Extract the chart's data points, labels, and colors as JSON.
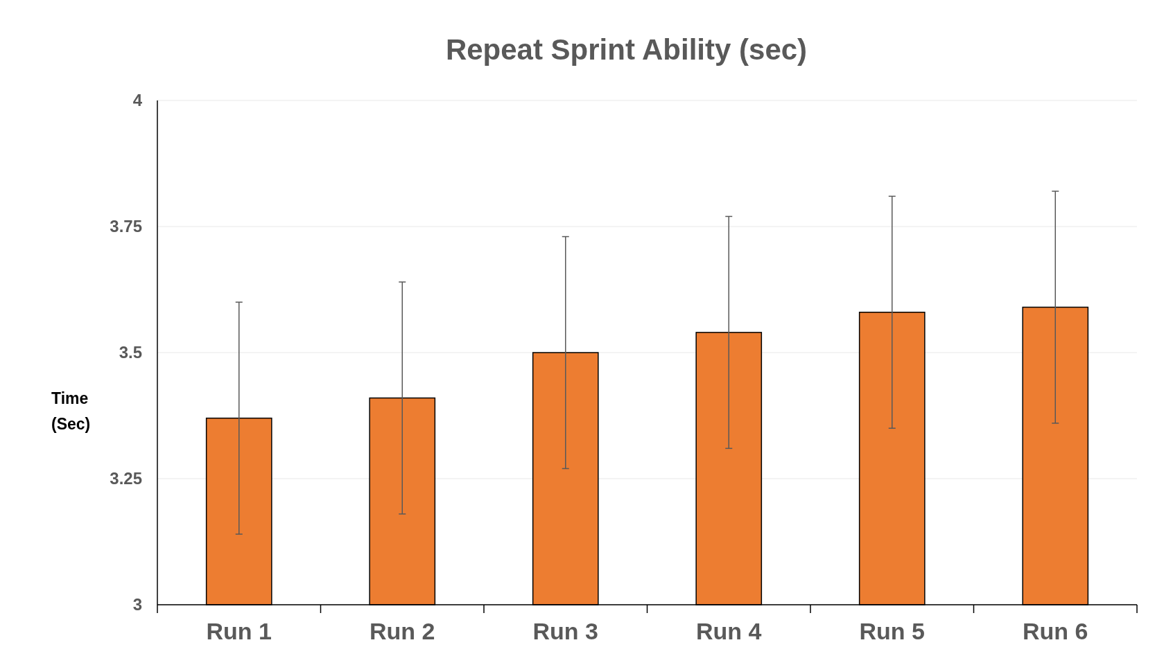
{
  "chart_data": {
    "type": "bar",
    "title": "Repeat Sprint Ability  (sec)",
    "ylabel": "Time (Sec)",
    "categories": [
      "Run 1",
      "Run 2",
      "Run 3",
      "Run 4",
      "Run 5",
      "Run 6"
    ],
    "values": [
      3.37,
      3.41,
      3.5,
      3.54,
      3.58,
      3.59
    ],
    "errors": [
      0.23,
      0.23,
      0.23,
      0.23,
      0.23,
      0.23
    ],
    "color": "#ed7d31",
    "ylim": [
      3,
      4
    ],
    "yticks": [
      3,
      3.25,
      3.5,
      3.75,
      4
    ],
    "grid": "y"
  }
}
